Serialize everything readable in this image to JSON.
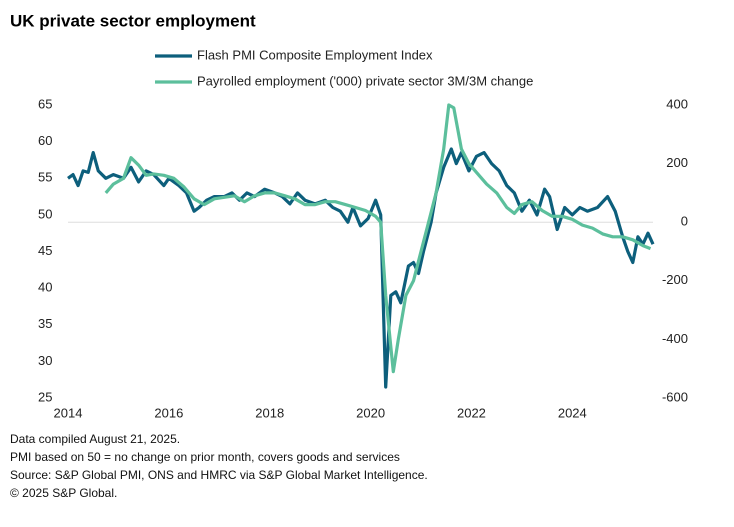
{
  "chart_data": {
    "type": "line",
    "title": "UK private sector employment",
    "xlim": [
      2014,
      2025.6
    ],
    "xticks": [
      2014,
      2016,
      2018,
      2020,
      2022,
      2024
    ],
    "ylim": [
      25,
      65
    ],
    "yticks": [
      25,
      30,
      35,
      40,
      45,
      50,
      55,
      60,
      65
    ],
    "y2lim": [
      -600,
      400
    ],
    "y2ticks": [
      -600,
      -400,
      -200,
      0,
      200,
      400
    ],
    "series": [
      {
        "name": "Flash PMI Composite Employment Index",
        "color": "#0d5f7c",
        "x": [
          2014.0,
          2014.1,
          2014.2,
          2014.3,
          2014.4,
          2014.5,
          2014.6,
          2014.75,
          2014.9,
          2015.1,
          2015.25,
          2015.4,
          2015.55,
          2015.7,
          2015.9,
          2016.0,
          2016.2,
          2016.35,
          2016.5,
          2016.6,
          2016.75,
          2016.9,
          2017.1,
          2017.25,
          2017.4,
          2017.55,
          2017.7,
          2017.9,
          2018.1,
          2018.25,
          2018.4,
          2018.55,
          2018.7,
          2018.9,
          2019.1,
          2019.25,
          2019.4,
          2019.55,
          2019.65,
          2019.8,
          2019.95,
          2020.1,
          2020.2,
          2020.3,
          2020.4,
          2020.5,
          2020.6,
          2020.75,
          2020.85,
          2020.95,
          2021.05,
          2021.2,
          2021.3,
          2021.45,
          2021.6,
          2021.7,
          2021.8,
          2021.95,
          2022.1,
          2022.25,
          2022.4,
          2022.55,
          2022.7,
          2022.85,
          2023.0,
          2023.15,
          2023.3,
          2023.45,
          2023.55,
          2023.7,
          2023.85,
          2024.0,
          2024.15,
          2024.3,
          2024.5,
          2024.7,
          2024.85,
          2025.0,
          2025.1,
          2025.2,
          2025.3,
          2025.4,
          2025.5,
          2025.6
        ],
        "values": [
          55,
          55.5,
          54,
          56,
          55.8,
          58.5,
          56,
          55,
          55.5,
          55,
          56.5,
          54.5,
          56,
          55.5,
          54,
          55,
          54,
          53,
          50.5,
          51,
          52,
          52.5,
          52.5,
          53,
          52,
          53,
          52.5,
          53.5,
          53,
          52.5,
          51.5,
          53,
          52,
          51.5,
          52,
          51,
          50.5,
          49,
          51,
          48.5,
          49.5,
          52,
          50,
          26.5,
          39,
          39.5,
          38,
          43,
          43.5,
          42,
          45,
          49,
          53,
          56.5,
          59,
          57,
          58.5,
          56,
          58,
          58.5,
          57,
          56,
          54,
          53,
          50.5,
          52,
          50,
          53.5,
          52.5,
          48,
          51,
          50,
          51,
          50.5,
          51,
          52.5,
          50.5,
          47,
          45,
          43.5,
          47,
          46,
          47.5,
          46
        ]
      },
      {
        "name": "Payrolled employment ('000) private sector 3M/3M change",
        "color": "#5cbf9c",
        "axis": "y2",
        "x": [
          2014.75,
          2014.9,
          2015.1,
          2015.25,
          2015.4,
          2015.55,
          2015.7,
          2015.9,
          2016.1,
          2016.3,
          2016.5,
          2016.7,
          2016.9,
          2017.1,
          2017.3,
          2017.5,
          2017.7,
          2017.9,
          2018.1,
          2018.3,
          2018.5,
          2018.7,
          2018.9,
          2019.1,
          2019.3,
          2019.5,
          2019.7,
          2019.9,
          2020.1,
          2020.2,
          2020.3,
          2020.45,
          2020.55,
          2020.7,
          2020.85,
          2021.0,
          2021.15,
          2021.3,
          2021.45,
          2021.55,
          2021.65,
          2021.8,
          2021.95,
          2022.1,
          2022.3,
          2022.5,
          2022.7,
          2022.85,
          2023.0,
          2023.2,
          2023.4,
          2023.6,
          2023.8,
          2024.0,
          2024.2,
          2024.4,
          2024.6,
          2024.8,
          2025.0,
          2025.2,
          2025.4,
          2025.55
        ],
        "values": [
          100,
          130,
          150,
          220,
          195,
          160,
          165,
          160,
          150,
          120,
          80,
          60,
          80,
          85,
          90,
          70,
          90,
          100,
          100,
          90,
          80,
          60,
          60,
          70,
          70,
          60,
          50,
          40,
          20,
          0,
          -250,
          -510,
          -400,
          -250,
          -200,
          -100,
          0,
          100,
          250,
          400,
          390,
          250,
          200,
          170,
          130,
          100,
          50,
          30,
          60,
          70,
          40,
          20,
          20,
          10,
          -10,
          -20,
          -40,
          -50,
          -50,
          -60,
          -80,
          -90
        ]
      }
    ],
    "notes": [
      "Data compiled August 21, 2025.",
      "PMI based on 50 = no change on prior month, covers goods and services",
      "Source: S&P Global PMI, ONS and HMRC via S&P Global Market Intelligence.",
      "© 2025 S&P Global."
    ]
  }
}
